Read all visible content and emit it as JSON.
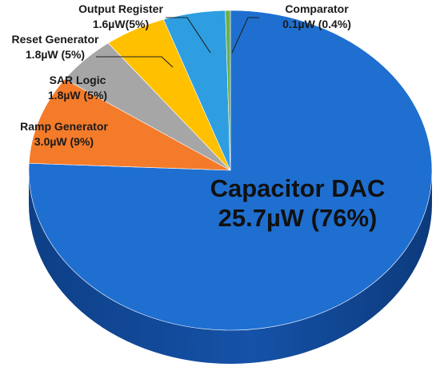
{
  "chart_data": {
    "type": "pie",
    "style": "3d",
    "start_angle_deg": 0,
    "direction": "clockwise-from-top",
    "slices": [
      {
        "name": "Capacitor DAC",
        "value_label": "25.7µW (76%)",
        "value": 25.7,
        "percent": 76,
        "color": "#1f6fd1"
      },
      {
        "name": "Ramp Generator",
        "value_label": "3.0µW (9%)",
        "value": 3.0,
        "percent": 9,
        "color": "#f47b2a"
      },
      {
        "name": "SAR Logic",
        "value_label": "1.8µW (5%)",
        "value": 1.8,
        "percent": 5,
        "color": "#a6a6a6"
      },
      {
        "name": "Reset Generator",
        "value_label": "1.8µW (5%)",
        "value": 1.8,
        "percent": 5,
        "color": "#ffc000"
      },
      {
        "name": "Output Register",
        "value_label": "1.6µW(5%)",
        "value": 1.6,
        "percent": 5,
        "color": "#2e9ee0"
      },
      {
        "name": "Comparator",
        "value_label": "0.1µW (0.4%)",
        "value": 0.1,
        "percent": 0.4,
        "color": "#6ab04c"
      }
    ]
  }
}
